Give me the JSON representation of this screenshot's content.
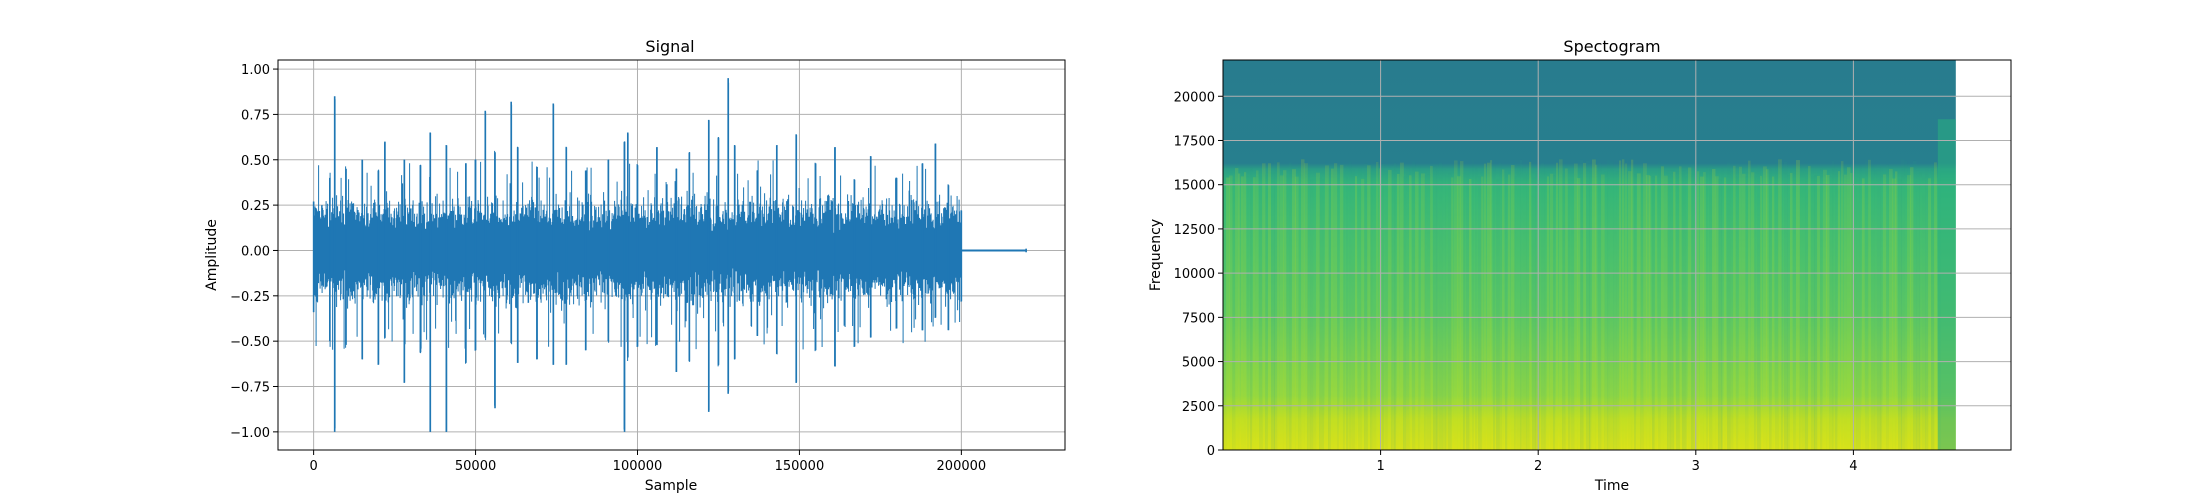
{
  "chart_data": [
    {
      "type": "line",
      "title": "Signal",
      "xlabel": "Sample",
      "ylabel": "Amplitude",
      "xlim": [
        -11000,
        232000
      ],
      "ylim": [
        -1.1,
        1.05
      ],
      "xticks": [
        0,
        50000,
        100000,
        150000,
        200000
      ],
      "xtick_labels": [
        "0",
        "50000",
        "100000",
        "150000",
        "200000"
      ],
      "yticks": [
        1.0,
        0.75,
        0.5,
        0.25,
        0.0,
        -0.25,
        -0.5,
        -0.75,
        -1.0
      ],
      "ytick_labels": [
        "1.00",
        "0.75",
        "0.50",
        "0.25",
        "0.00",
        "−0.25",
        "−0.50",
        "−0.75",
        "−1.00"
      ],
      "grid": true,
      "color": "#1f77b4",
      "series": [
        {
          "x": [
            0,
            5000,
            6500,
            10000,
            15000,
            20000,
            22000,
            28000,
            33000,
            36000,
            41000,
            47000,
            50000,
            53000,
            56000,
            61000,
            63000,
            69000,
            74000,
            78000,
            84000,
            91000,
            96000,
            97000,
            100000,
            106000,
            112000,
            116000,
            122000,
            125000,
            128000,
            130000,
            137000,
            143000,
            149000,
            155000,
            161000,
            167000,
            172000,
            180000,
            188000,
            192000,
            196000,
            200000,
            220000
          ],
          "envelope_max": [
            0.27,
            0.4,
            0.85,
            0.45,
            0.5,
            0.44,
            0.6,
            0.5,
            0.47,
            0.65,
            0.58,
            0.48,
            0.5,
            0.77,
            0.54,
            0.82,
            0.57,
            0.46,
            0.81,
            0.57,
            0.44,
            0.5,
            0.6,
            0.65,
            0.47,
            0.57,
            0.45,
            0.54,
            0.72,
            0.62,
            0.95,
            0.58,
            0.44,
            0.58,
            0.64,
            0.48,
            0.57,
            0.39,
            0.52,
            0.4,
            0.48,
            0.59,
            0.36,
            0.22,
            0.01
          ],
          "envelope_min": [
            -0.34,
            -0.5,
            -1.0,
            -0.52,
            -0.6,
            -0.63,
            -0.48,
            -0.73,
            -0.56,
            -1.0,
            -1.0,
            -0.62,
            -0.55,
            -0.48,
            -0.87,
            -0.51,
            -0.62,
            -0.6,
            -0.63,
            -0.63,
            -0.55,
            -0.5,
            -1.0,
            -0.59,
            -0.53,
            -0.52,
            -0.67,
            -0.61,
            -0.89,
            -0.63,
            -0.79,
            -0.6,
            -0.47,
            -0.57,
            -0.73,
            -0.55,
            -0.64,
            -0.53,
            -0.48,
            -0.43,
            -0.44,
            -0.37,
            -0.44,
            -0.28,
            -0.01
          ]
        }
      ]
    },
    {
      "type": "heatmap",
      "title": "Spectogram",
      "xlabel": "Time",
      "ylabel": "Frequency",
      "xlim": [
        0,
        5.0
      ],
      "ylim": [
        0,
        22050
      ],
      "xticks": [
        1,
        2,
        3,
        4
      ],
      "xtick_labels": [
        "1",
        "2",
        "3",
        "4"
      ],
      "yticks": [
        0,
        2500,
        5000,
        7500,
        10000,
        12500,
        15000,
        17500,
        20000
      ],
      "ytick_labels": [
        "0",
        "2500",
        "5000",
        "7500",
        "10000",
        "12500",
        "15000",
        "17500",
        "20000"
      ],
      "grid": true,
      "data_end_time": 4.65,
      "colormap": "viridis",
      "colors": {
        "low": "#2a788e",
        "mid": "#3fbc73",
        "high": "#dde318",
        "top": "#277f8e"
      }
    }
  ]
}
